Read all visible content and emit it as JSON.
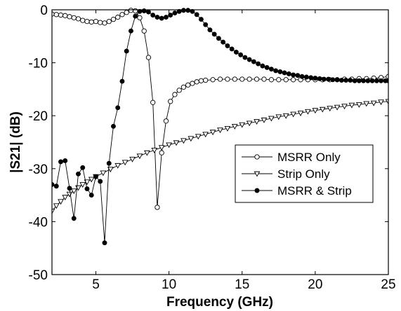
{
  "chart_data": {
    "type": "line",
    "title": "",
    "xlabel": "Frequency (GHz)",
    "ylabel": "|S21| (dB)",
    "xlim": [
      2,
      25
    ],
    "ylim": [
      -50,
      0
    ],
    "x_ticks": [
      5,
      10,
      15,
      20,
      25
    ],
    "x_tick_labels": [
      "5",
      "10",
      "15",
      "20",
      "25"
    ],
    "y_ticks": [
      0,
      -10,
      -20,
      -30,
      -40,
      -50
    ],
    "y_tick_labels": [
      "0",
      "-10",
      "-20",
      "-30",
      "-40",
      "-50"
    ],
    "grid": false,
    "legend_position": "center-right",
    "series": [
      {
        "name": "MSRR Only",
        "marker": "circle-open",
        "x": [
          2.0,
          2.3,
          2.6,
          2.9,
          3.2,
          3.5,
          3.8,
          4.1,
          4.4,
          4.7,
          5.0,
          5.3,
          5.6,
          5.9,
          6.2,
          6.5,
          6.8,
          7.1,
          7.4,
          7.7,
          8.0,
          8.3,
          8.6,
          8.9,
          9.2,
          9.5,
          9.8,
          10.1,
          10.4,
          10.7,
          11.0,
          11.3,
          11.6,
          11.9,
          12.2,
          12.5,
          13.0,
          13.5,
          14.0,
          14.5,
          15.0,
          15.5,
          16.0,
          16.5,
          17.0,
          17.5,
          18.0,
          18.5,
          19.0,
          19.5,
          20.0,
          20.5,
          21.0,
          21.5,
          22.0,
          22.5,
          23.0,
          23.5,
          24.0,
          24.5,
          25.0
        ],
        "y": [
          -0.8,
          -0.9,
          -1.0,
          -1.1,
          -1.3,
          -1.5,
          -1.7,
          -2.0,
          -2.2,
          -2.3,
          -2.2,
          -2.4,
          -2.5,
          -2.2,
          -1.8,
          -1.4,
          -0.9,
          -0.5,
          -0.1,
          -0.2,
          -1.5,
          -4.0,
          -9.0,
          -17.5,
          -37.3,
          -27.0,
          -21.0,
          -17.3,
          -16.0,
          -15.2,
          -14.6,
          -14.2,
          -13.9,
          -13.6,
          -13.4,
          -13.3,
          -13.2,
          -13.1,
          -13.1,
          -13.1,
          -13.1,
          -13.1,
          -13.1,
          -13.1,
          -13.2,
          -13.2,
          -13.2,
          -13.2,
          -13.2,
          -13.2,
          -13.2,
          -13.2,
          -13.2,
          -13.2,
          -13.1,
          -13.1,
          -13.0,
          -13.0,
          -12.9,
          -12.8,
          -12.6
        ]
      },
      {
        "name": "Strip Only",
        "marker": "triangle-down-open",
        "x": [
          2.0,
          2.3,
          2.6,
          2.9,
          3.2,
          3.5,
          3.8,
          4.1,
          4.4,
          4.7,
          5.0,
          5.5,
          6.0,
          6.5,
          7.0,
          7.5,
          8.0,
          8.5,
          9.0,
          9.5,
          10.0,
          10.5,
          11.0,
          11.5,
          12.0,
          12.5,
          13.0,
          13.5,
          14.0,
          14.5,
          15.0,
          15.5,
          16.0,
          16.5,
          17.0,
          17.5,
          18.0,
          18.5,
          19.0,
          19.5,
          20.0,
          20.5,
          21.0,
          21.5,
          22.0,
          22.5,
          23.0,
          23.5,
          24.0,
          24.5,
          25.0
        ],
        "y": [
          -38.0,
          -37.0,
          -36.2,
          -35.4,
          -34.8,
          -34.2,
          -33.6,
          -33.0,
          -32.5,
          -32.0,
          -31.5,
          -30.8,
          -30.1,
          -29.4,
          -28.8,
          -28.2,
          -27.6,
          -27.0,
          -26.5,
          -26.0,
          -25.5,
          -25.1,
          -24.7,
          -24.3,
          -23.9,
          -23.5,
          -23.1,
          -22.7,
          -22.4,
          -22.0,
          -21.7,
          -21.4,
          -21.1,
          -20.8,
          -20.5,
          -20.2,
          -20.0,
          -19.7,
          -19.5,
          -19.2,
          -19.0,
          -18.8,
          -18.6,
          -18.4,
          -18.2,
          -18.0,
          -17.9,
          -17.7,
          -17.6,
          -17.4,
          -17.3
        ]
      },
      {
        "name": "MSRR & Strip",
        "marker": "circle-filled",
        "x": [
          2.0,
          2.3,
          2.6,
          2.9,
          3.2,
          3.5,
          3.8,
          4.1,
          4.4,
          4.7,
          5.0,
          5.3,
          5.6,
          5.9,
          6.2,
          6.5,
          6.8,
          7.1,
          7.4,
          7.7,
          8.0,
          8.3,
          8.6,
          8.9,
          9.2,
          9.5,
          9.8,
          10.1,
          10.4,
          10.7,
          11.0,
          11.3,
          11.6,
          11.9,
          12.2,
          12.5,
          12.8,
          13.1,
          13.4,
          13.7,
          14.0,
          14.3,
          14.6,
          14.9,
          15.2,
          15.5,
          15.8,
          16.1,
          16.4,
          16.7,
          17.0,
          17.3,
          17.6,
          17.9,
          18.2,
          18.5,
          18.8,
          19.1,
          19.4,
          19.7,
          20.0,
          20.3,
          20.6,
          20.9,
          21.2,
          21.5,
          21.8,
          22.1,
          22.4,
          22.7,
          23.0,
          23.3,
          23.6,
          23.9,
          24.2,
          24.5,
          24.8,
          25.0
        ],
        "y": [
          -33.0,
          -33.3,
          -28.7,
          -28.5,
          -33.7,
          -39.4,
          -31.0,
          -29.8,
          -33.8,
          -35.0,
          -31.5,
          -32.4,
          -44.0,
          -29.0,
          -22.0,
          -18.5,
          -13.5,
          -7.8,
          -4.0,
          -1.2,
          -0.3,
          -0.2,
          -0.4,
          -1.0,
          -1.4,
          -1.6,
          -1.4,
          -1.0,
          -0.6,
          -0.3,
          -0.1,
          -0.1,
          -0.3,
          -0.9,
          -1.8,
          -2.8,
          -3.8,
          -4.6,
          -5.4,
          -6.1,
          -6.8,
          -7.4,
          -8.0,
          -8.5,
          -9.0,
          -9.4,
          -9.8,
          -10.2,
          -10.6,
          -10.9,
          -11.2,
          -11.5,
          -11.7,
          -11.9,
          -12.1,
          -12.3,
          -12.4,
          -12.6,
          -12.7,
          -12.8,
          -12.9,
          -13.0,
          -13.1,
          -13.1,
          -13.2,
          -13.2,
          -13.3,
          -13.3,
          -13.3,
          -13.4,
          -13.4,
          -13.4,
          -13.4,
          -13.4,
          -13.4,
          -13.4,
          -13.4,
          -13.4
        ]
      }
    ]
  }
}
